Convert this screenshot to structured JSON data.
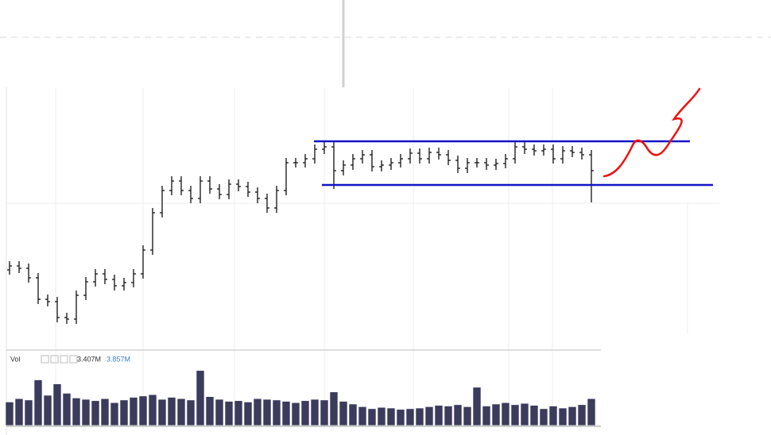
{
  "chart_data": {
    "type": "ohlc",
    "color": "#111111",
    "ylim": [
      0,
      330
    ],
    "open": [
      100,
      105,
      102,
      90,
      63,
      60,
      40,
      38,
      68,
      85,
      95,
      88,
      80,
      84,
      95,
      125,
      172,
      200,
      212,
      200,
      190,
      212,
      202,
      195,
      208,
      205,
      198,
      190,
      178,
      200,
      235,
      235,
      240,
      252,
      255,
      225,
      232,
      240,
      245,
      230,
      232,
      235,
      240,
      247,
      240,
      248,
      245,
      238,
      228,
      235,
      235,
      232,
      234,
      240,
      255,
      252,
      250,
      252,
      240,
      250,
      248,
      245
    ],
    "high": [
      111,
      111,
      108,
      96,
      69,
      66,
      46,
      74,
      91,
      101,
      101,
      94,
      90,
      101,
      131,
      178,
      206,
      218,
      218,
      206,
      218,
      218,
      208,
      214,
      214,
      211,
      204,
      196,
      206,
      241,
      241,
      246,
      258,
      261,
      261,
      238,
      246,
      251,
      251,
      238,
      241,
      246,
      253,
      253,
      254,
      254,
      251,
      244,
      241,
      241,
      241,
      240,
      246,
      261,
      261,
      258,
      258,
      258,
      256,
      256,
      254,
      251
    ],
    "low": [
      94,
      96,
      84,
      57,
      54,
      34,
      32,
      32,
      62,
      79,
      82,
      74,
      74,
      78,
      89,
      119,
      166,
      194,
      194,
      184,
      184,
      196,
      189,
      189,
      199,
      192,
      184,
      172,
      172,
      194,
      229,
      229,
      234,
      246,
      202,
      219,
      226,
      234,
      224,
      224,
      226,
      229,
      234,
      234,
      234,
      239,
      232,
      222,
      222,
      229,
      226,
      226,
      228,
      234,
      246,
      244,
      244,
      234,
      234,
      242,
      239,
      185
    ],
    "close": [
      105,
      102,
      90,
      63,
      60,
      40,
      38,
      68,
      85,
      95,
      88,
      80,
      84,
      95,
      125,
      172,
      200,
      212,
      200,
      190,
      212,
      202,
      195,
      208,
      205,
      198,
      190,
      178,
      200,
      235,
      235,
      240,
      252,
      255,
      225,
      232,
      240,
      245,
      230,
      232,
      235,
      240,
      247,
      240,
      248,
      245,
      238,
      228,
      235,
      235,
      232,
      234,
      240,
      255,
      252,
      250,
      252,
      240,
      250,
      248,
      245,
      225
    ],
    "levels": [
      262,
      207
    ],
    "level_color": "#1414c8",
    "volume": {
      "label": "Vol",
      "readouts": [
        "3.407M",
        "3.857M"
      ],
      "readout_colors": [
        "#333333",
        "#3a7fc0"
      ],
      "color": "#3b3b5c",
      "ylim": [
        0,
        9
      ],
      "values": [
        3.5,
        4,
        3.8,
        6.8,
        4.5,
        6.2,
        4.8,
        4.1,
        3.9,
        3.7,
        4,
        3.4,
        3.8,
        4.2,
        4.4,
        4.6,
        3.9,
        4.2,
        4,
        3.8,
        8.2,
        4.3,
        3.9,
        3.6,
        3.7,
        3.5,
        4,
        3.9,
        3.8,
        3.6,
        3.4,
        3.7,
        3.9,
        3.8,
        5,
        3.6,
        3.2,
        2.8,
        2.5,
        2.7,
        2.6,
        2.4,
        2.5,
        2.6,
        2.8,
        3,
        2.9,
        3.1,
        2.8,
        5.7,
        2.9,
        3.2,
        3.4,
        3.1,
        3.3,
        3,
        2.5,
        2.9,
        2.6,
        2.8,
        3.1,
        4
      ]
    }
  }
}
